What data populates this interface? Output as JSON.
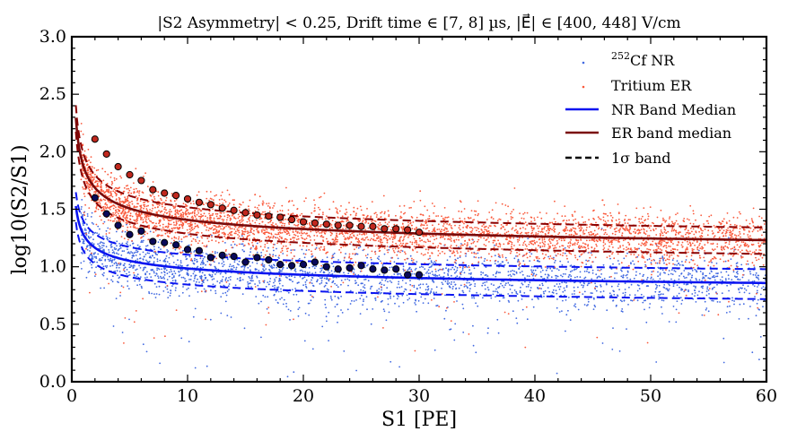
{
  "chart_data": {
    "type": "scatter",
    "title": "|S2 Asymmetry| < 0.25, Drift time ∈ [7, 8] µs,  |E⃗| ∈ [400, 448] V/cm",
    "xlabel": "S1 [PE]",
    "ylabel": "log10(S2/S1)",
    "xlim": [
      0,
      60
    ],
    "ylim": [
      0.0,
      3.0
    ],
    "x_ticks": [
      0,
      10,
      20,
      30,
      40,
      50,
      60
    ],
    "x_tick_labels": [
      "0",
      "10",
      "20",
      "30",
      "40",
      "50",
      "60"
    ],
    "y_ticks": [
      0.0,
      0.5,
      1.0,
      1.5,
      2.0,
      2.5,
      3.0
    ],
    "y_tick_labels": [
      "0.0",
      "0.5",
      "1.0",
      "1.5",
      "2.0",
      "2.5",
      "3.0"
    ],
    "legend_position": "top-right",
    "colors": {
      "nr_scatter": "#4169e1",
      "er_scatter": "#fa5a3c",
      "nr_line": "#0a14f0",
      "er_line": "#7a0a0a",
      "er_dash": "#8b0000",
      "sigma_legend": "#000000",
      "nr_points": "#0a0a5a",
      "er_points": "#c0281e"
    },
    "scatter_counts": {
      "nr": 2600,
      "er": 4200
    },
    "series": [
      {
        "name": "NR Band Median",
        "kind": "median",
        "model": {
          "a": 0.3,
          "b": 0.98,
          "c": 0.09
        },
        "sigma_offsets": [
          0.12,
          -0.14
        ]
      },
      {
        "name": "ER band median",
        "kind": "median",
        "model": {
          "a": 0.545,
          "b": 1.33,
          "c": 0.095
        },
        "sigma_offsets": [
          0.11,
          -0.12
        ]
      }
    ],
    "nr_binned_medians": {
      "x": [
        2,
        3,
        4,
        5,
        6,
        7,
        8,
        9,
        10,
        11,
        12,
        13,
        14,
        15,
        16,
        17,
        18,
        19,
        20,
        21,
        22,
        23,
        24,
        25,
        26,
        27,
        28,
        29,
        30
      ],
      "y": [
        1.6,
        1.46,
        1.36,
        1.28,
        1.31,
        1.22,
        1.21,
        1.19,
        1.15,
        1.14,
        1.08,
        1.1,
        1.09,
        1.04,
        1.08,
        1.06,
        1.02,
        1.01,
        1.02,
        1.04,
        1.0,
        0.98,
        0.99,
        1.01,
        0.98,
        0.97,
        0.98,
        0.93,
        0.93
      ]
    },
    "er_binned_medians": {
      "x": [
        2,
        3,
        4,
        5,
        6,
        7,
        8,
        9,
        10,
        11,
        12,
        13,
        14,
        15,
        16,
        17,
        18,
        19,
        20,
        21,
        22,
        23,
        24,
        25,
        26,
        27,
        28,
        29,
        30
      ],
      "y": [
        2.11,
        1.98,
        1.87,
        1.8,
        1.75,
        1.67,
        1.64,
        1.62,
        1.59,
        1.56,
        1.54,
        1.51,
        1.49,
        1.47,
        1.45,
        1.44,
        1.43,
        1.41,
        1.39,
        1.38,
        1.37,
        1.36,
        1.36,
        1.35,
        1.35,
        1.33,
        1.33,
        1.32,
        1.3
      ]
    },
    "legend": [
      {
        "id": "nr",
        "label_sup": "252",
        "label": "Cf NR",
        "kind": "scatter"
      },
      {
        "id": "er",
        "label": "Tritium ER",
        "kind": "scatter"
      },
      {
        "id": "nr-median",
        "label": "NR Band Median",
        "kind": "line"
      },
      {
        "id": "er-median",
        "label": "ER band median",
        "kind": "line"
      },
      {
        "id": "sigma",
        "label": "1σ band",
        "kind": "dashed"
      }
    ]
  }
}
